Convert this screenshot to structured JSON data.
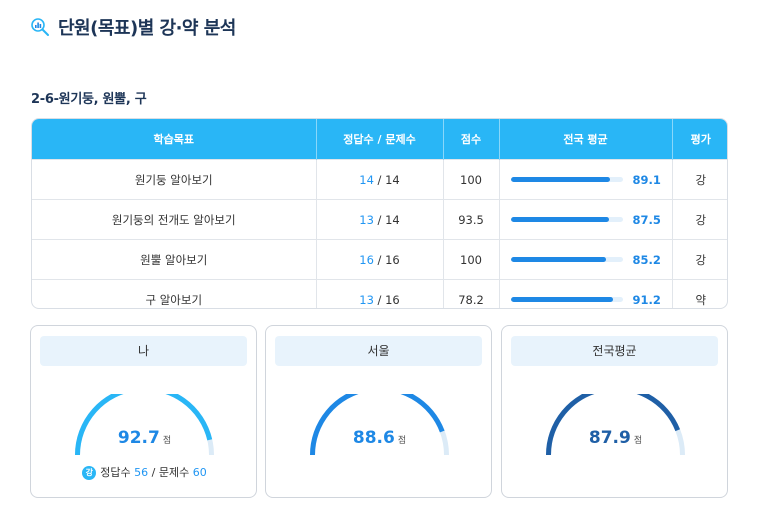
{
  "header": {
    "title": "단원(목표)별 강·약 분석",
    "icon": "magnifier-chart-icon"
  },
  "section": {
    "title": "2-6-원기둥, 원뿔, 구"
  },
  "table": {
    "headers": [
      "학습목표",
      "정답수 / 문제수",
      "점수",
      "전국 평균",
      "평가"
    ],
    "rows": [
      {
        "goal": "원기둥 알아보기",
        "correct": "14",
        "total": "14",
        "score": "100",
        "avg": 89.1,
        "avg_label": "89.1",
        "eval": "강"
      },
      {
        "goal": "원기둥의 전개도 알아보기",
        "correct": "13",
        "total": "14",
        "score": "93.5",
        "avg": 87.5,
        "avg_label": "87.5",
        "eval": "강"
      },
      {
        "goal": "원뿔 알아보기",
        "correct": "16",
        "total": "16",
        "score": "100",
        "avg": 85.2,
        "avg_label": "85.2",
        "eval": "강"
      },
      {
        "goal": "구 알아보기",
        "correct": "13",
        "total": "16",
        "score": "78.2",
        "avg": 91.2,
        "avg_label": "91.2",
        "eval": "약"
      }
    ]
  },
  "cards": [
    {
      "label": "나",
      "score": 92.7,
      "score_label": "92.7",
      "unit": "점",
      "color": "#29b6f6",
      "foot": {
        "badge": "강",
        "correct_label": "정답수",
        "correct": "56",
        "total_label": "문제수",
        "total": "60"
      }
    },
    {
      "label": "서울",
      "score": 88.6,
      "score_label": "88.6",
      "unit": "점",
      "color": "#1e88e5"
    },
    {
      "label": "전국평균",
      "score": 87.9,
      "score_label": "87.9",
      "unit": "점",
      "color": "#1f5fa6"
    }
  ],
  "colors": {
    "accent": "#29b6f6",
    "bar": "#1e88e5",
    "track": "#dcebf7"
  }
}
